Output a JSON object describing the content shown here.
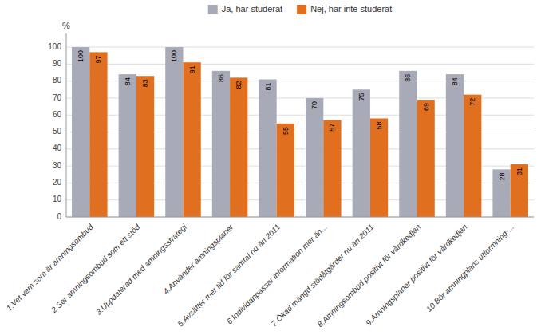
{
  "chart_data": {
    "type": "bar",
    "y_label": "%",
    "categories": [
      "1.Vet vem som är amningsombud",
      "2.Ser amningsombud som ett stöd",
      "3.Uppdaterad med amningsstrategi",
      "4.Använder amningsplaner",
      "5.Avsätter mer tid för samtal nu än 2011",
      "6.Individanpassar information mer än...",
      "7.Ökad mängd stödåtgärder nu än 2011",
      "8.Amningsombud positivt för vårdkedjan",
      "9.Amningsplaner positivt för vårdkedjan",
      "10.Bör amningplans utformning-..."
    ],
    "series": [
      {
        "name": "Ja, har studerat",
        "color": "#a8aab8",
        "values": [
          100,
          84,
          100,
          86,
          81,
          70,
          75,
          86,
          84,
          28
        ]
      },
      {
        "name": "Nej, har inte studerat",
        "color": "#e07020",
        "values": [
          97,
          83,
          91,
          82,
          55,
          57,
          58,
          69,
          72,
          31
        ]
      }
    ],
    "ylim": [
      0,
      108
    ],
    "yticks": [
      0,
      10,
      20,
      30,
      40,
      50,
      60,
      70,
      80,
      90,
      100
    ],
    "grid": true,
    "legend": "top",
    "data_labels": true
  }
}
